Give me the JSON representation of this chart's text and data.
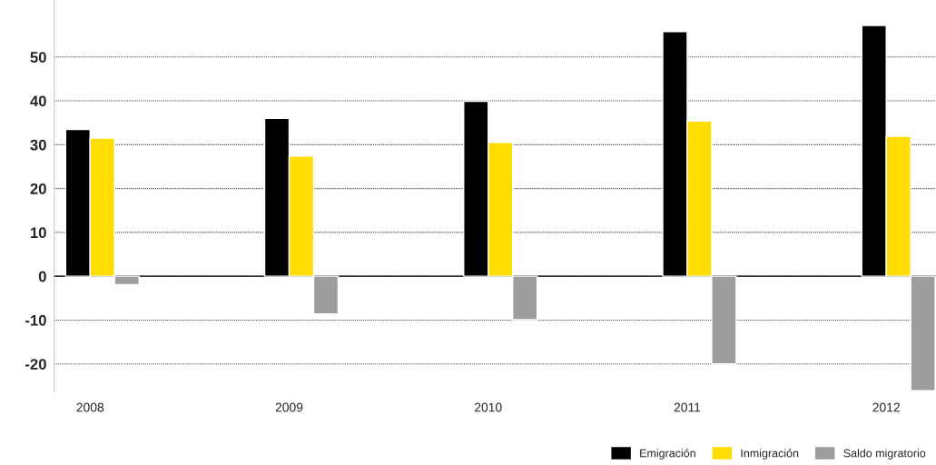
{
  "chart_data": {
    "type": "bar",
    "categories": [
      "2008",
      "2009",
      "2010",
      "2011",
      "2012"
    ],
    "series": [
      {
        "name": "Emigración",
        "color": "#000000",
        "values": [
          33.5,
          36,
          39.9,
          55.8,
          57.2
        ]
      },
      {
        "name": "Inmigración",
        "color": "#ffdd00",
        "values": [
          31.5,
          27.4,
          30.5,
          35.4,
          31.9
        ]
      },
      {
        "name": "Saldo migratorio",
        "color": "#9d9d9d",
        "values": [
          -1.9,
          -8.6,
          -9.9,
          -20,
          -26.1
        ]
      }
    ],
    "ylim": [
      -26.5,
      63
    ],
    "yticks": [
      -20,
      -10,
      0,
      10,
      20,
      30,
      40,
      50
    ],
    "grid": "y",
    "legend": "bottom right"
  }
}
